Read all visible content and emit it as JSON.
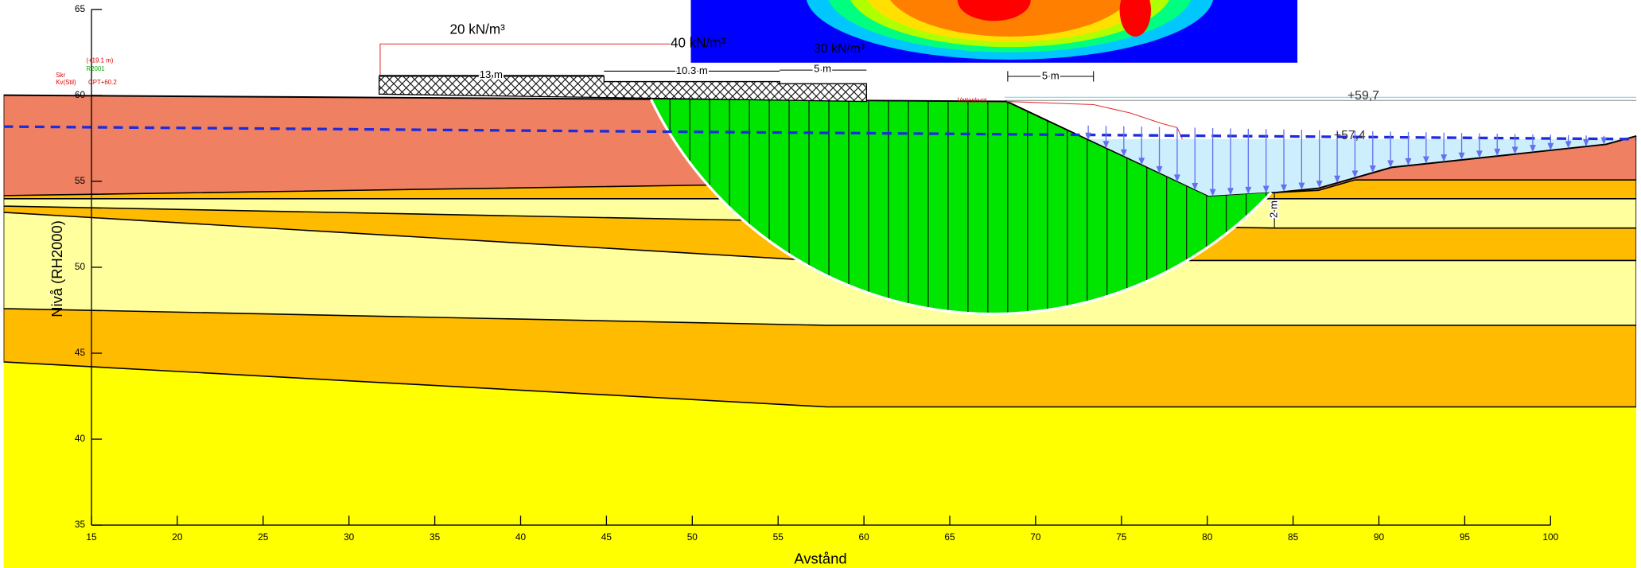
{
  "axes": {
    "xlabel": "Avstånd",
    "ylabel": "Nivå (RH2000)",
    "xlim": [
      15,
      100
    ],
    "ylim": [
      35,
      65
    ],
    "xticks": [
      15,
      20,
      25,
      30,
      35,
      40,
      45,
      50,
      55,
      60,
      65,
      70,
      75,
      80,
      85,
      90,
      95,
      100
    ],
    "yticks": [
      35,
      40,
      45,
      50,
      55,
      60,
      65
    ]
  },
  "loads": [
    "20 kN/m³",
    "40 kN/m³",
    "30 kN/m³"
  ],
  "dimensions": [
    "13 m",
    "10.3 m",
    "5 m",
    "5 m",
    "2 m"
  ],
  "levels": [
    "+59,7",
    "+57,4"
  ],
  "annotations": [
    "(+19.1 m)",
    "R2001",
    "Skr",
    "Kv(Stil)",
    "CPT+60.2",
    "Vattenkvot"
  ]
}
